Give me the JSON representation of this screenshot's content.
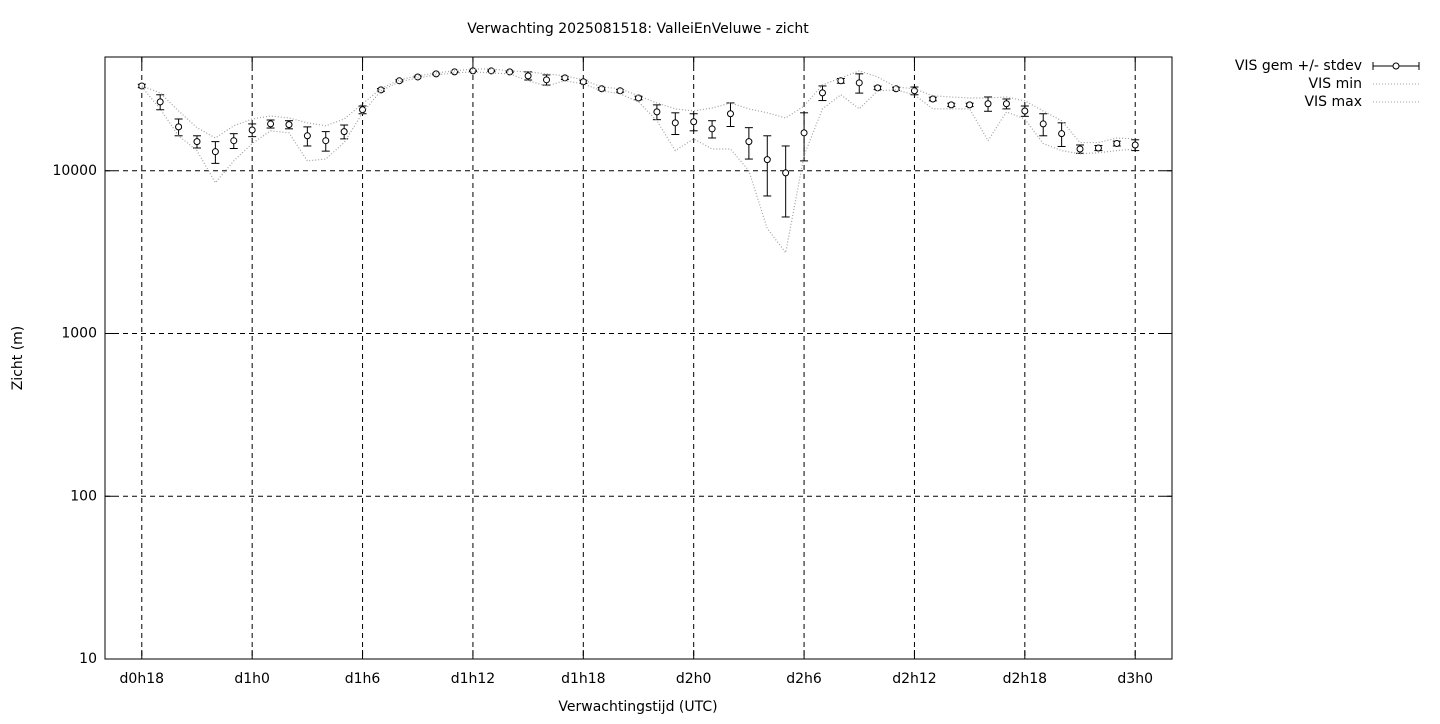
{
  "chart_data": {
    "type": "line",
    "title": "Verwachting 2025081518: ValleiEnVeluwe - zicht",
    "x_label": "Verwachtingstijd (UTC)",
    "y_label": "Zicht (m)",
    "log_y": true,
    "grid": true,
    "legend": "outside-top-right",
    "xlim": [
      16,
      74
    ],
    "xticks": [
      {
        "value": 18,
        "label": "d0h18"
      },
      {
        "value": 24,
        "label": "d1h0"
      },
      {
        "value": 30,
        "label": "d1h6"
      },
      {
        "value": 36,
        "label": "d1h12"
      },
      {
        "value": 42,
        "label": "d1h18"
      },
      {
        "value": 48,
        "label": "d2h0"
      },
      {
        "value": 54,
        "label": "d2h6"
      },
      {
        "value": 60,
        "label": "d2h12"
      },
      {
        "value": 66,
        "label": "d2h18"
      },
      {
        "value": 72,
        "label": "d3h0"
      }
    ],
    "ylim": [
      10,
      50000
    ],
    "yticks": [
      10,
      100,
      1000,
      10000
    ],
    "x": [
      18,
      19,
      20,
      21,
      22,
      23,
      24,
      25,
      26,
      27,
      28,
      29,
      30,
      31,
      32,
      33,
      34,
      35,
      36,
      37,
      38,
      39,
      40,
      41,
      42,
      43,
      44,
      45,
      46,
      47,
      48,
      49,
      50,
      51,
      52,
      53,
      54,
      55,
      56,
      57,
      58,
      59,
      60,
      61,
      62,
      63,
      64,
      65,
      66,
      67,
      68,
      69,
      70,
      71,
      72
    ],
    "series": [
      {
        "name": "VIS gem +/- stdev",
        "color": "#000000",
        "values": [
          33200,
          26500,
          18600,
          15100,
          13100,
          15300,
          17800,
          19400,
          19200,
          16400,
          15300,
          17400,
          23700,
          31400,
          35700,
          37700,
          39400,
          40500,
          41100,
          41100,
          40500,
          38300,
          36200,
          37200,
          35200,
          31900,
          31000,
          28000,
          23000,
          19700,
          20000,
          18100,
          22400,
          15100,
          11700,
          9700,
          17100,
          30100,
          35700,
          34700,
          32300,
          31900,
          31000,
          27600,
          25400,
          25400,
          25800,
          25800,
          23300,
          19400,
          16900,
          13600,
          13800,
          14700,
          14400
        ],
        "errors": [
          800,
          2800,
          2200,
          1300,
          2000,
          1600,
          1600,
          1100,
          1100,
          2200,
          2100,
          1700,
          1300,
          600,
          500,
          400,
          400,
          400,
          400,
          400,
          400,
          2200,
          2600,
          800,
          800,
          600,
          600,
          700,
          2400,
          3000,
          2400,
          2200,
          3700,
          3300,
          4700,
          4500,
          5600,
          3100,
          1200,
          4700,
          800,
          700,
          1700,
          700,
          600,
          600,
          2600,
          1800,
          1700,
          3000,
          2800,
          800,
          500,
          500,
          1100
        ]
      },
      {
        "name": "VIS min",
        "color": "#a0a0a0",
        "values": [
          32700,
          24000,
          16400,
          13300,
          8440,
          11500,
          14700,
          17600,
          17100,
          11500,
          11800,
          14900,
          22700,
          31000,
          35200,
          37200,
          38800,
          39900,
          40500,
          39900,
          39400,
          35700,
          33200,
          35700,
          34200,
          31000,
          29700,
          26500,
          20300,
          13300,
          15700,
          13600,
          13600,
          10000,
          4410,
          3140,
          12400,
          24000,
          29300,
          24000,
          31000,
          31400,
          29300,
          24000,
          24000,
          24000,
          15300,
          23000,
          20800,
          14700,
          13300,
          12700,
          12900,
          13300,
          13600
        ]
      },
      {
        "name": "VIS max",
        "color": "#a0a0a0",
        "values": [
          33200,
          30100,
          23300,
          18400,
          15900,
          18900,
          20800,
          21700,
          21100,
          19700,
          18900,
          20800,
          25800,
          31900,
          36200,
          38300,
          39900,
          41100,
          42200,
          42200,
          41100,
          40500,
          39400,
          38300,
          36200,
          32700,
          31900,
          28900,
          26100,
          24000,
          23300,
          24300,
          26100,
          24000,
          22700,
          21100,
          25000,
          33700,
          37200,
          41100,
          37700,
          32700,
          31900,
          28900,
          28400,
          28000,
          28000,
          28400,
          26900,
          23300,
          20300,
          14900,
          14900,
          15900,
          15700
        ]
      }
    ]
  }
}
